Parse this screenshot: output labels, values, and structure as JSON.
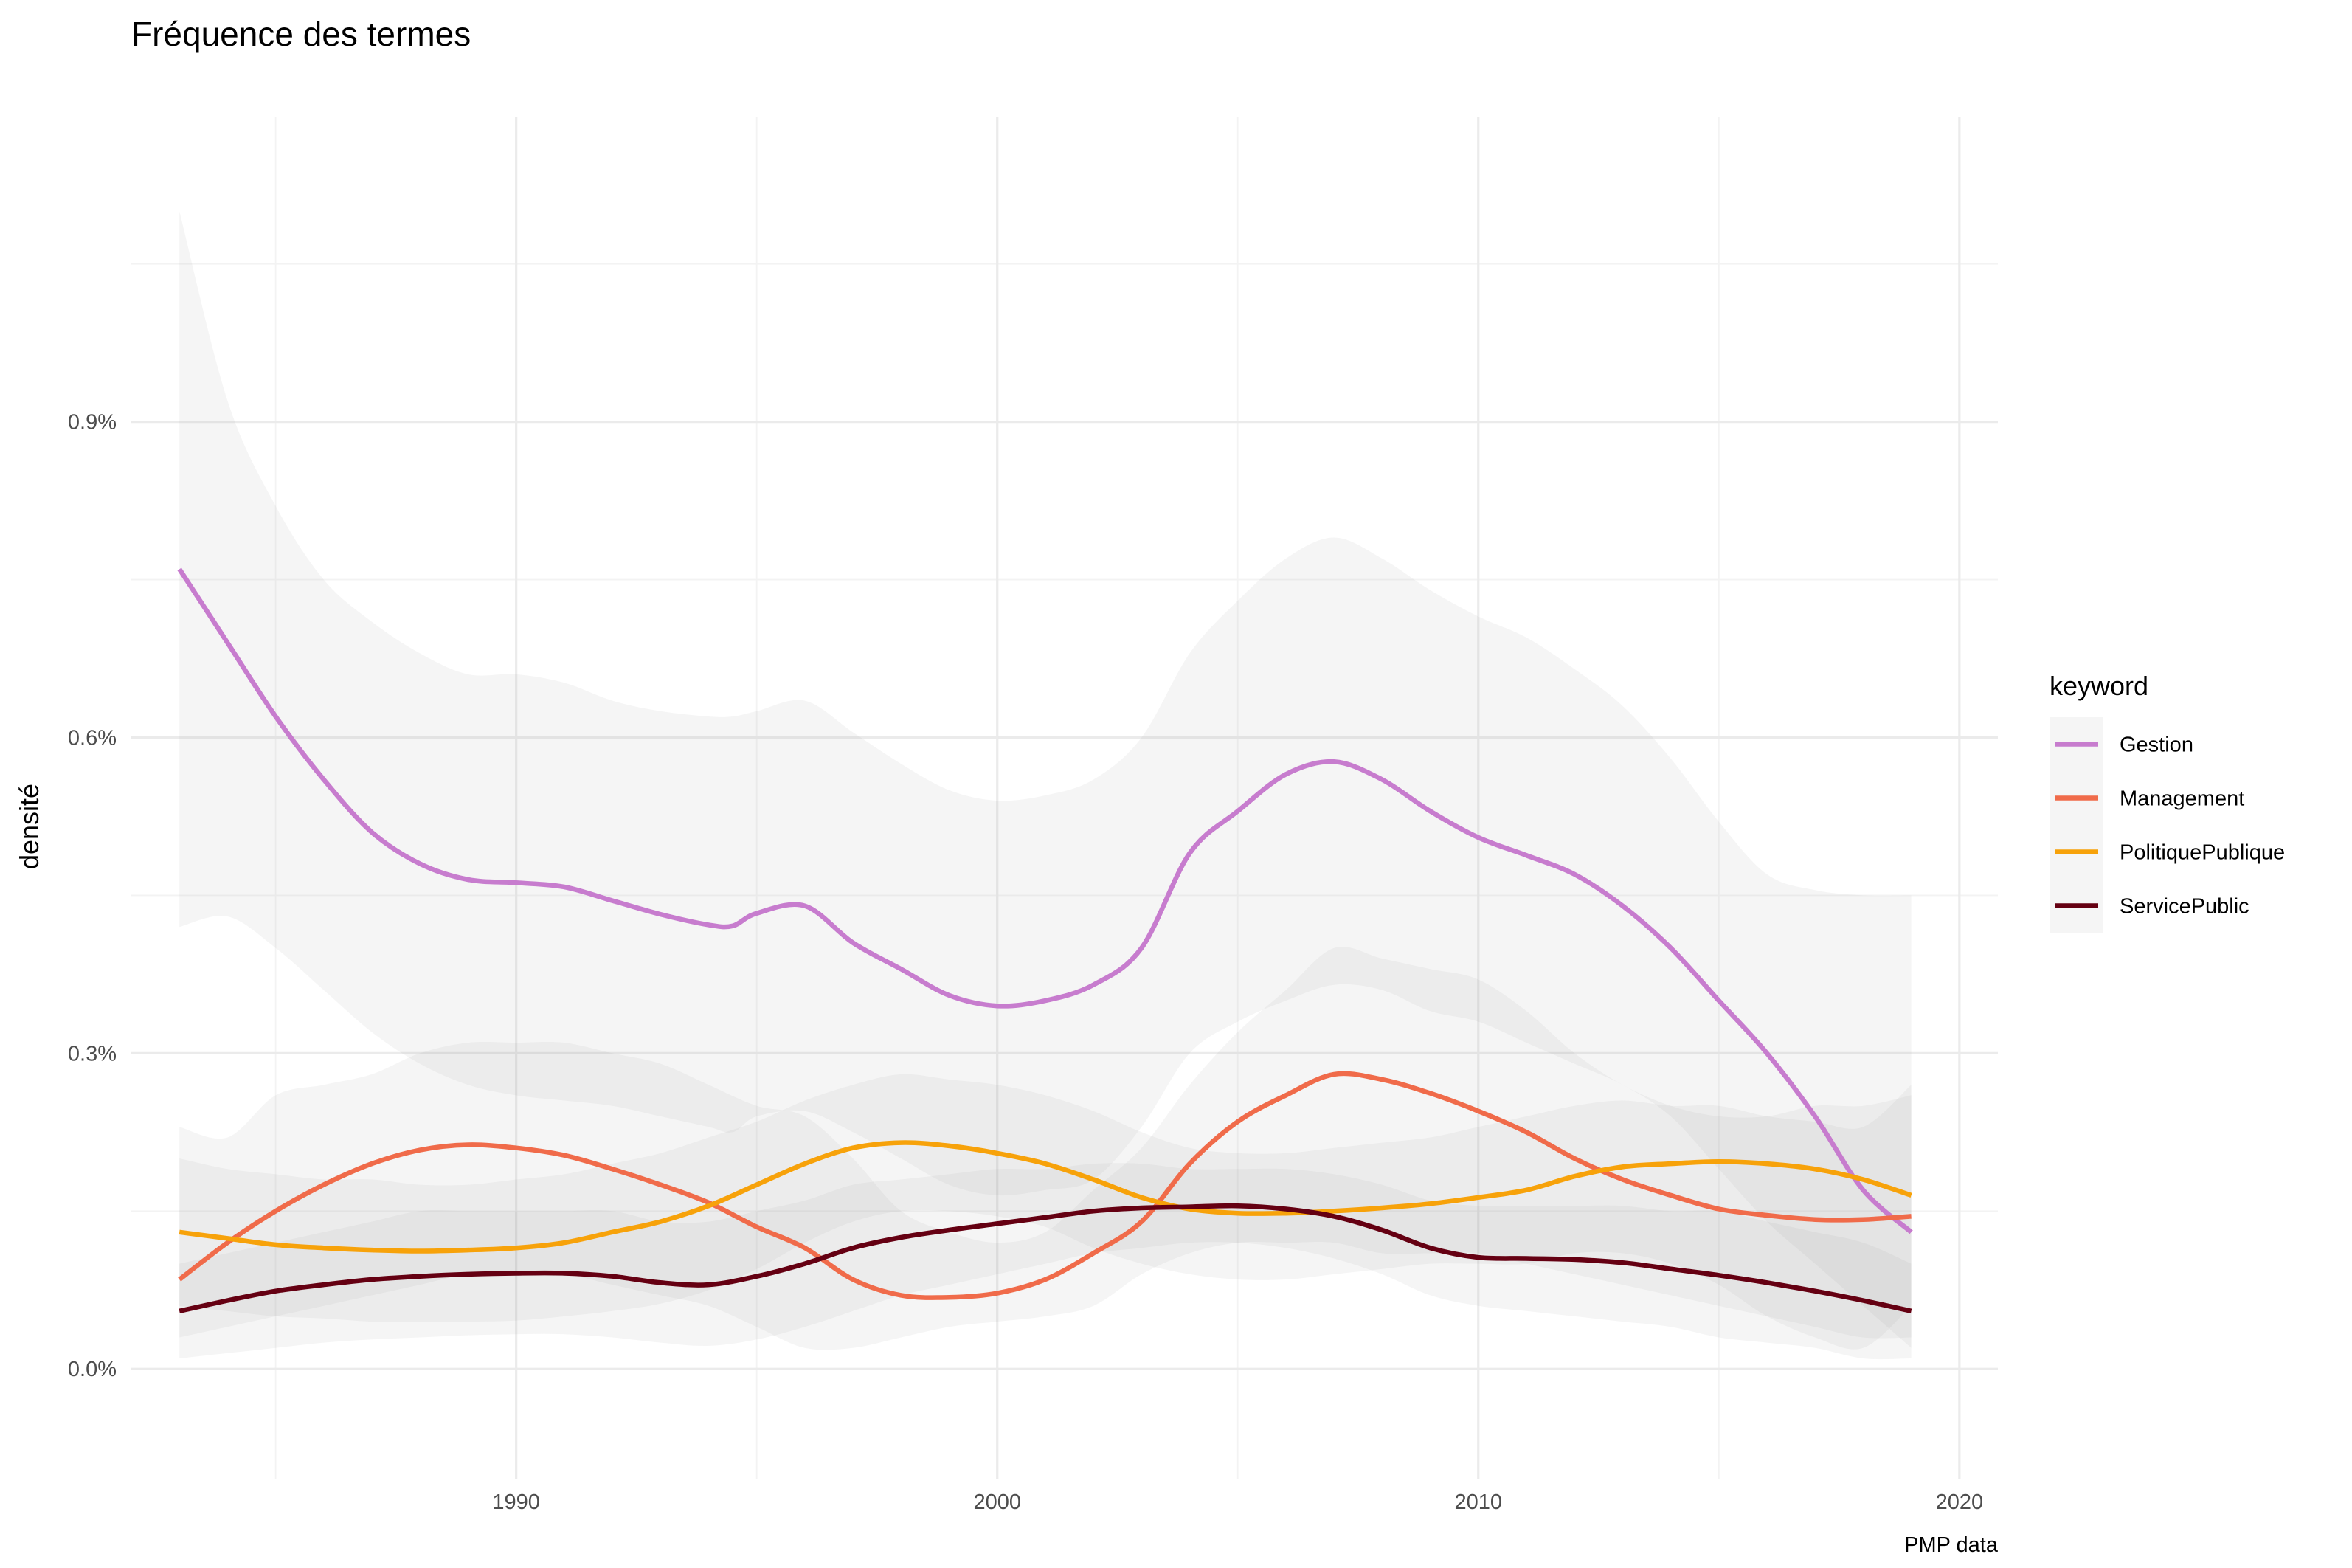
{
  "chart_data": {
    "type": "line",
    "title": "Fréquence des termes",
    "xlabel": "",
    "ylabel": "densité",
    "caption": "PMP data",
    "xlim": [
      1982,
      2020.8
    ],
    "ylim": [
      -0.105,
      1.19
    ],
    "x_ticks": [
      1990,
      2000,
      2010,
      2020
    ],
    "x_tick_labels": [
      "1990",
      "2000",
      "2010",
      "2020"
    ],
    "x_minor": [
      1985,
      1995,
      2005,
      2015
    ],
    "y_ticks": [
      0.0,
      0.3,
      0.6,
      0.9
    ],
    "y_tick_labels": [
      "0.0%",
      "0.3%",
      "0.6%",
      "0.9%"
    ],
    "y_minor": [
      0.15,
      0.45,
      0.75,
      1.05
    ],
    "grid": true,
    "legend": {
      "title": "keyword",
      "position": "right"
    },
    "series": [
      {
        "name": "Gestion",
        "color": "#c77cce",
        "x": [
          1983,
          1984,
          1985,
          1986,
          1987,
          1988,
          1989,
          1990,
          1991,
          1992,
          1993,
          1994,
          1994.5,
          1995,
          1996,
          1997,
          1998,
          1999,
          2000,
          2001,
          2002,
          2003,
          2004,
          2005,
          2006,
          2007,
          2008,
          2009,
          2010,
          2011,
          2012,
          2013,
          2014,
          2015,
          2016,
          2017,
          2018,
          2019
        ],
        "y": [
          0.76,
          0.69,
          0.62,
          0.56,
          0.51,
          0.48,
          0.465,
          0.462,
          0.458,
          0.445,
          0.432,
          0.422,
          0.421,
          0.433,
          0.44,
          0.405,
          0.38,
          0.355,
          0.345,
          0.35,
          0.365,
          0.4,
          0.49,
          0.53,
          0.565,
          0.577,
          0.56,
          0.53,
          0.505,
          0.488,
          0.47,
          0.44,
          0.4,
          0.35,
          0.3,
          0.24,
          0.17,
          0.13
        ],
        "band_low": [
          0.42,
          0.43,
          0.4,
          0.36,
          0.32,
          0.29,
          0.27,
          0.26,
          0.255,
          0.25,
          0.24,
          0.23,
          0.225,
          0.24,
          0.245,
          0.225,
          0.2,
          0.175,
          0.165,
          0.17,
          0.18,
          0.23,
          0.3,
          0.33,
          0.35,
          0.365,
          0.36,
          0.34,
          0.33,
          0.31,
          0.29,
          0.27,
          0.24,
          0.19,
          0.14,
          0.1,
          0.06,
          0.02
        ],
        "band_high": [
          1.1,
          0.92,
          0.82,
          0.75,
          0.71,
          0.68,
          0.66,
          0.66,
          0.652,
          0.635,
          0.625,
          0.62,
          0.62,
          0.625,
          0.635,
          0.605,
          0.575,
          0.55,
          0.54,
          0.545,
          0.56,
          0.6,
          0.68,
          0.73,
          0.77,
          0.79,
          0.77,
          0.74,
          0.715,
          0.695,
          0.665,
          0.63,
          0.58,
          0.52,
          0.47,
          0.455,
          0.45,
          0.45
        ]
      },
      {
        "name": "Management",
        "color": "#f06b4a",
        "x": [
          1983,
          1984,
          1985,
          1986,
          1987,
          1988,
          1989,
          1990,
          1991,
          1992,
          1993,
          1994,
          1995,
          1996,
          1997,
          1998,
          1999,
          2000,
          2001,
          2002,
          2003,
          2004,
          2005,
          2006,
          2007,
          2008,
          2009,
          2010,
          2011,
          2012,
          2013,
          2014,
          2015,
          2016,
          2017,
          2018,
          2019
        ],
        "y": [
          0.085,
          0.12,
          0.15,
          0.175,
          0.195,
          0.208,
          0.213,
          0.21,
          0.203,
          0.19,
          0.175,
          0.158,
          0.135,
          0.115,
          0.085,
          0.07,
          0.068,
          0.072,
          0.085,
          0.11,
          0.14,
          0.195,
          0.235,
          0.26,
          0.28,
          0.275,
          0.262,
          0.245,
          0.225,
          0.2,
          0.18,
          0.165,
          0.152,
          0.146,
          0.142,
          0.142,
          0.145
        ],
        "band_low": [
          0.03,
          0.04,
          0.05,
          0.06,
          0.07,
          0.08,
          0.09,
          0.09,
          0.09,
          0.08,
          0.07,
          0.06,
          0.04,
          0.02,
          0.02,
          0.03,
          0.04,
          0.045,
          0.05,
          0.06,
          0.09,
          0.11,
          0.12,
          0.12,
          0.12,
          0.11,
          0.11,
          0.11,
          0.1,
          0.09,
          0.08,
          0.07,
          0.06,
          0.05,
          0.04,
          0.03,
          0.03
        ],
        "band_high": [
          0.23,
          0.22,
          0.26,
          0.27,
          0.28,
          0.3,
          0.31,
          0.31,
          0.31,
          0.3,
          0.29,
          0.27,
          0.25,
          0.24,
          0.2,
          0.15,
          0.13,
          0.12,
          0.13,
          0.17,
          0.21,
          0.27,
          0.32,
          0.36,
          0.4,
          0.39,
          0.38,
          0.37,
          0.34,
          0.3,
          0.27,
          0.25,
          0.24,
          0.24,
          0.25,
          0.25,
          0.26
        ]
      },
      {
        "name": "PolitiquePublique",
        "color": "#f7a20a",
        "x": [
          1983,
          1984,
          1985,
          1986,
          1987,
          1988,
          1989,
          1990,
          1991,
          1992,
          1993,
          1994,
          1995,
          1996,
          1997,
          1998,
          1999,
          2000,
          2001,
          2002,
          2003,
          2004,
          2005,
          2006,
          2007,
          2008,
          2009,
          2010,
          2011,
          2012,
          2013,
          2014,
          2015,
          2016,
          2017,
          2018,
          2019
        ],
        "y": [
          0.13,
          0.124,
          0.118,
          0.115,
          0.113,
          0.112,
          0.113,
          0.115,
          0.12,
          0.13,
          0.14,
          0.155,
          0.175,
          0.195,
          0.21,
          0.215,
          0.212,
          0.205,
          0.195,
          0.18,
          0.163,
          0.152,
          0.148,
          0.148,
          0.15,
          0.153,
          0.157,
          0.163,
          0.17,
          0.183,
          0.192,
          0.195,
          0.197,
          0.195,
          0.19,
          0.18,
          0.165
        ],
        "band_low": [
          0.06,
          0.055,
          0.05,
          0.048,
          0.045,
          0.045,
          0.045,
          0.046,
          0.05,
          0.055,
          0.062,
          0.075,
          0.095,
          0.12,
          0.14,
          0.15,
          0.15,
          0.145,
          0.135,
          0.115,
          0.1,
          0.09,
          0.085,
          0.085,
          0.09,
          0.095,
          0.1,
          0.1,
          0.1,
          0.11,
          0.11,
          0.1,
          0.08,
          0.05,
          0.03,
          0.02,
          0.06
        ],
        "band_high": [
          0.2,
          0.19,
          0.185,
          0.18,
          0.18,
          0.175,
          0.175,
          0.18,
          0.185,
          0.195,
          0.205,
          0.22,
          0.235,
          0.255,
          0.27,
          0.28,
          0.275,
          0.27,
          0.26,
          0.245,
          0.225,
          0.21,
          0.205,
          0.205,
          0.21,
          0.215,
          0.22,
          0.23,
          0.24,
          0.25,
          0.255,
          0.25,
          0.25,
          0.24,
          0.235,
          0.23,
          0.27
        ]
      },
      {
        "name": "ServicePublic",
        "color": "#650012",
        "x": [
          1983,
          1984,
          1985,
          1986,
          1987,
          1988,
          1989,
          1990,
          1991,
          1992,
          1993,
          1994,
          1995,
          1996,
          1997,
          1998,
          1999,
          2000,
          2001,
          2002,
          2003,
          2004,
          2005,
          2006,
          2007,
          2008,
          2009,
          2010,
          2011,
          2012,
          2013,
          2014,
          2015,
          2016,
          2017,
          2018,
          2019
        ],
        "y": [
          0.055,
          0.065,
          0.074,
          0.08,
          0.085,
          0.088,
          0.09,
          0.091,
          0.091,
          0.088,
          0.082,
          0.08,
          0.088,
          0.1,
          0.115,
          0.125,
          0.132,
          0.138,
          0.144,
          0.15,
          0.153,
          0.154,
          0.155,
          0.152,
          0.145,
          0.132,
          0.115,
          0.106,
          0.105,
          0.104,
          0.101,
          0.095,
          0.089,
          0.082,
          0.074,
          0.065,
          0.055
        ],
        "band_low": [
          0.01,
          0.015,
          0.02,
          0.025,
          0.028,
          0.03,
          0.032,
          0.033,
          0.033,
          0.03,
          0.025,
          0.022,
          0.028,
          0.04,
          0.055,
          0.07,
          0.08,
          0.09,
          0.1,
          0.11,
          0.115,
          0.12,
          0.12,
          0.115,
          0.105,
          0.09,
          0.07,
          0.06,
          0.055,
          0.05,
          0.045,
          0.04,
          0.03,
          0.025,
          0.02,
          0.01,
          0.01
        ],
        "band_high": [
          0.1,
          0.11,
          0.12,
          0.13,
          0.14,
          0.15,
          0.15,
          0.15,
          0.15,
          0.15,
          0.14,
          0.14,
          0.15,
          0.16,
          0.175,
          0.18,
          0.185,
          0.19,
          0.19,
          0.195,
          0.195,
          0.19,
          0.19,
          0.19,
          0.185,
          0.175,
          0.16,
          0.155,
          0.155,
          0.155,
          0.155,
          0.15,
          0.15,
          0.14,
          0.13,
          0.12,
          0.1
        ]
      }
    ]
  }
}
